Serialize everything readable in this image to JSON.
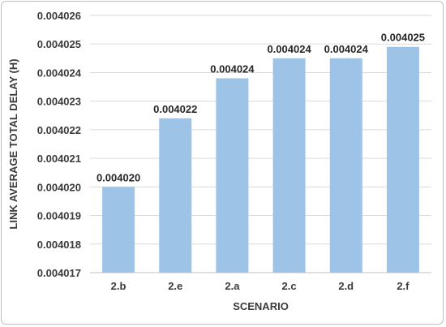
{
  "chart_data": {
    "type": "bar",
    "title": "",
    "xlabel": "SCENARIO",
    "ylabel": "LINK AVERAGE TOTAL DELAY (H)",
    "categories": [
      "2.b",
      "2.e",
      "2.a",
      "2.c",
      "2.d",
      "2.f"
    ],
    "values": [
      0.00402,
      0.0040224,
      0.0040238,
      0.0040245,
      0.0040245,
      0.0040249
    ],
    "data_labels": [
      "0.004020",
      "0.004022",
      "0.004024",
      "0.004024",
      "0.004024",
      "0.004025"
    ],
    "ylim": [
      0.004017,
      0.004026
    ],
    "yticks": [
      "0.004017",
      "0.004018",
      "0.004019",
      "0.004020",
      "0.004021",
      "0.004022",
      "0.004023",
      "0.004024",
      "0.004025",
      "0.004026"
    ],
    "grid": true,
    "legend": "none",
    "bar_color": "#9dc3e6",
    "grid_color": "#d9d9d9"
  }
}
